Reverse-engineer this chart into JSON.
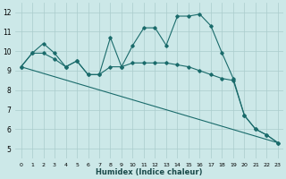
{
  "xlabel": "Humidex (Indice chaleur)",
  "bg_color": "#cce8e8",
  "grid_color": "#aacccc",
  "line_color": "#1a6b6b",
  "xlim": [
    -0.5,
    23.5
  ],
  "ylim": [
    4.5,
    12.5
  ],
  "xticks": [
    0,
    1,
    2,
    3,
    4,
    5,
    6,
    7,
    8,
    9,
    10,
    11,
    12,
    13,
    14,
    15,
    16,
    17,
    18,
    19,
    20,
    21,
    22,
    23
  ],
  "yticks": [
    5,
    6,
    7,
    8,
    9,
    10,
    11,
    12
  ],
  "line1_x": [
    0,
    1,
    2,
    3,
    4,
    5,
    6,
    7,
    8,
    9,
    10,
    11,
    12,
    13,
    14,
    15,
    16,
    17,
    18,
    19,
    20,
    21,
    22,
    23
  ],
  "line1_y": [
    9.2,
    9.9,
    10.4,
    9.9,
    9.2,
    9.5,
    8.8,
    8.8,
    10.7,
    9.2,
    10.3,
    11.2,
    11.2,
    10.3,
    11.8,
    11.8,
    11.9,
    11.3,
    9.9,
    8.6,
    6.7,
    6.0,
    5.7,
    5.3
  ],
  "line2_x": [
    0,
    23
  ],
  "line2_y": [
    9.2,
    5.3
  ],
  "line3_x": [
    0,
    1,
    2,
    3,
    4,
    5,
    6,
    7,
    8,
    9,
    10,
    11,
    12,
    13,
    14,
    15,
    16,
    17,
    18,
    19,
    20,
    21,
    22,
    23
  ],
  "line3_y": [
    9.2,
    9.9,
    9.9,
    9.6,
    9.2,
    9.5,
    8.8,
    8.8,
    9.2,
    9.2,
    9.4,
    9.4,
    9.4,
    9.4,
    9.3,
    9.2,
    9.0,
    8.8,
    8.6,
    8.5,
    6.7,
    6.0,
    5.7,
    5.3
  ]
}
